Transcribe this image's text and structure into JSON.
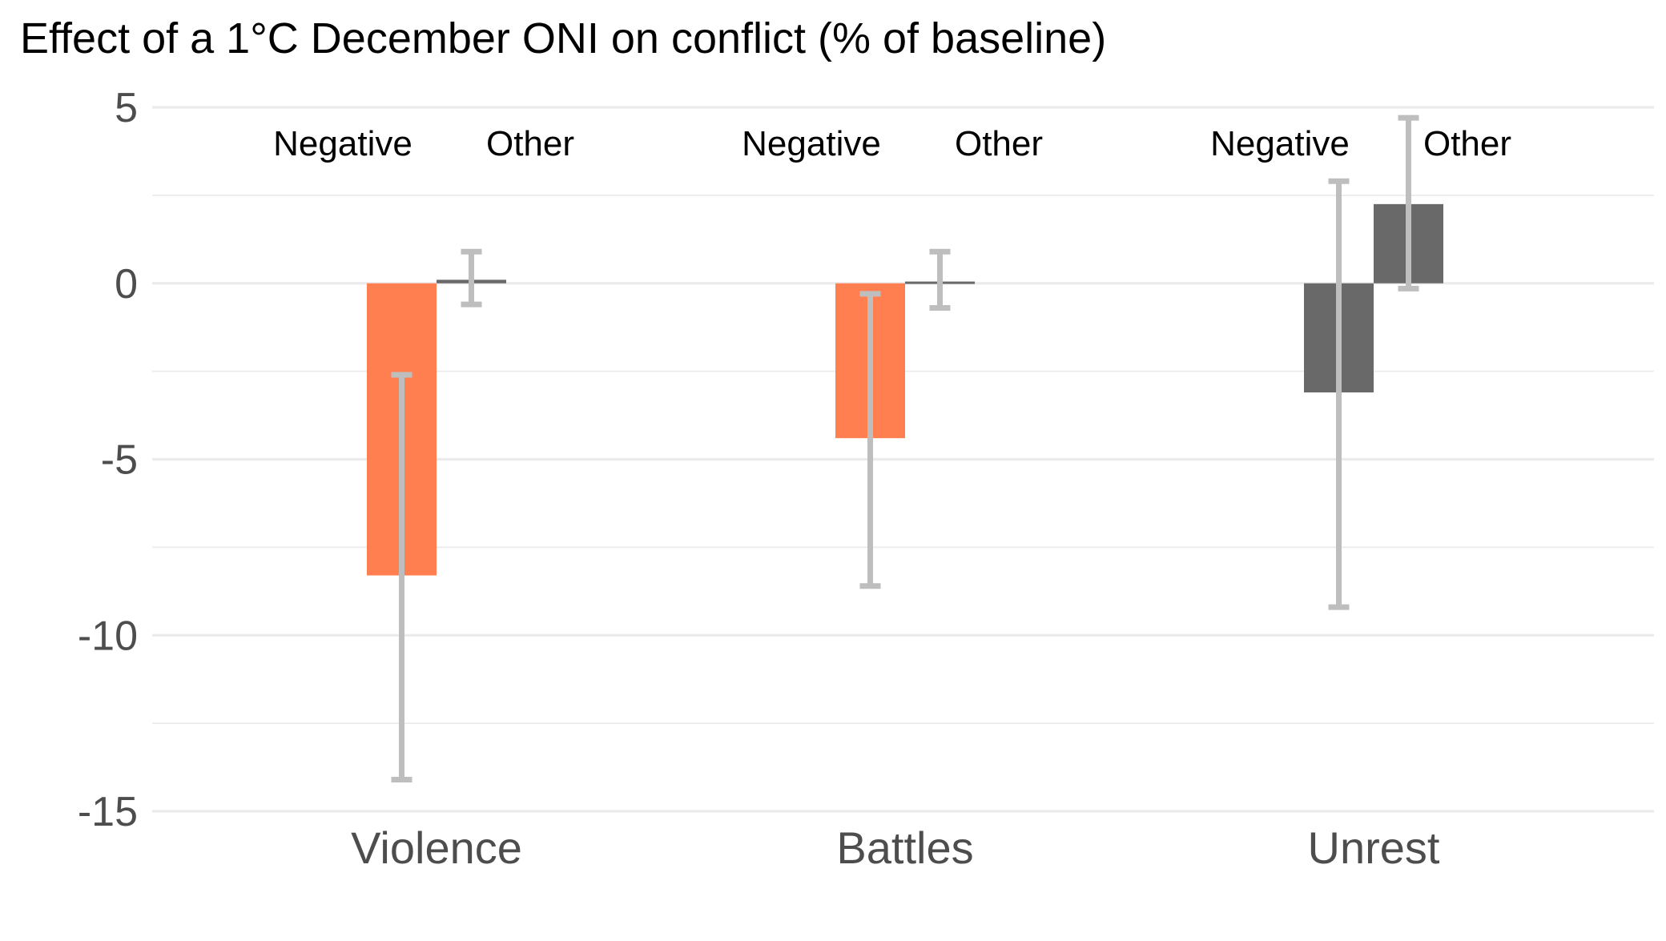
{
  "chart_data": {
    "type": "bar",
    "title": "Effect of a 1°C December ONI on conflict (% of baseline)",
    "xlabel": "",
    "ylabel": "",
    "ylim": [
      -15,
      5
    ],
    "yticks": [
      "5",
      "0",
      "-5",
      "-10",
      "-15"
    ],
    "ytick_values": [
      5,
      0,
      -5,
      -10,
      -15
    ],
    "grid": true,
    "legend": "none",
    "categories": [
      "Violence",
      "Battles",
      "Unrest"
    ],
    "subgroups": [
      "Negative",
      "Other"
    ],
    "series": [
      {
        "values": [
          -8.3,
          -4.4,
          -3.1
        ],
        "ci_low": [
          -14.1,
          -8.6,
          -9.2
        ],
        "ci_high": [
          -2.6,
          -0.3,
          2.9
        ],
        "colors": [
          "#ff7f50",
          "#ff7f50",
          "#696969"
        ]
      },
      {
        "values": [
          0.1,
          0.05,
          2.25
        ],
        "ci_low": [
          -0.6,
          -0.7,
          -0.15
        ],
        "ci_high": [
          0.9,
          0.9,
          4.7
        ],
        "colors": [
          "#696969",
          "#696969",
          "#696969"
        ]
      }
    ],
    "errorbar_color": "#bebebe",
    "gridline_color": "#ebebeb"
  }
}
